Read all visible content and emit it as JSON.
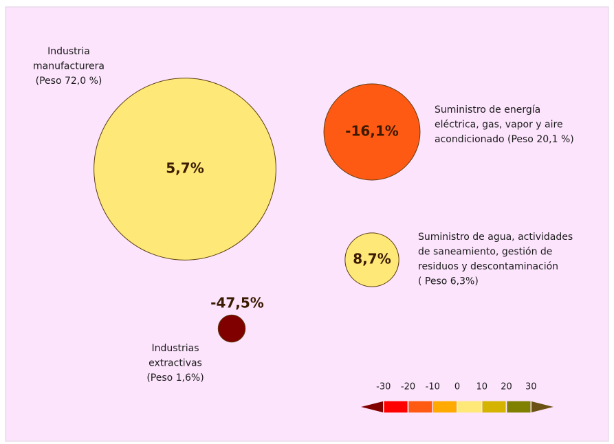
{
  "chart_data": {
    "type": "bubble",
    "series": [
      {
        "label_lines": [
          "Industria",
          "manufacturera",
          "(Peso 72,0 %)"
        ],
        "value": 5.7,
        "value_label": "5,7%",
        "weight": 72.0
      },
      {
        "label_lines": [
          "Suministro de energía",
          "eléctrica, gas, vapor y aire",
          "acondicionado  (Peso 20,1 %)"
        ],
        "value": -16.1,
        "value_label": "-16,1%",
        "weight": 20.1
      },
      {
        "label_lines": [
          "Suministro de agua, actividades",
          "de saneamiento, gestión de",
          "residuos y descontaminación",
          "( Peso 6,3%)"
        ],
        "value": 8.7,
        "value_label": "8,7%",
        "weight": 6.3
      },
      {
        "label_lines": [
          "Industrias",
          "extractivas",
          "(Peso  1,6%)"
        ],
        "value": -47.5,
        "value_label": "-47,5%",
        "weight": 1.6
      }
    ],
    "colorscale": {
      "ticks": [
        -30,
        -20,
        -10,
        0,
        10,
        20,
        30
      ],
      "colors": [
        "#800000",
        "#ff0000",
        "#ff5a14",
        "#ffaa00",
        "#fde878",
        "#d4b400",
        "#808000",
        "#6b5214"
      ]
    }
  }
}
